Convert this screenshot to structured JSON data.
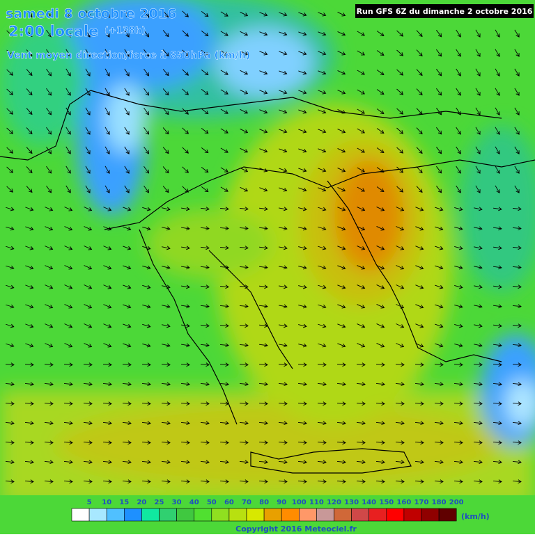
{
  "header": {
    "date": "samedi 8 octobre 2016",
    "time": "2:00 locale",
    "offset": "(+138h)",
    "variable": "Vent moyen direction/force à 850hPa (km/h)",
    "run": "Run GFS 6Z du dimanche 2 octobre 2016"
  },
  "legend": {
    "items": [
      {
        "label": 5,
        "color": "#ffffff"
      },
      {
        "label": 10,
        "color": "#a8e8ff"
      },
      {
        "label": 15,
        "color": "#50c0ff"
      },
      {
        "label": 20,
        "color": "#1e90ff"
      },
      {
        "label": 25,
        "color": "#10e8a0"
      },
      {
        "label": 30,
        "color": "#30d070"
      },
      {
        "label": 40,
        "color": "#40c840"
      },
      {
        "label": 50,
        "color": "#50e030"
      },
      {
        "label": 60,
        "color": "#90e020"
      },
      {
        "label": 70,
        "color": "#b8e010"
      },
      {
        "label": 80,
        "color": "#d8e800"
      },
      {
        "label": 90,
        "color": "#e8a000"
      },
      {
        "label": 100,
        "color": "#ff8c00"
      },
      {
        "label": 110,
        "color": "#ff9868"
      },
      {
        "label": 120,
        "color": "#c89898"
      },
      {
        "label": 130,
        "color": "#d06838"
      },
      {
        "label": 140,
        "color": "#d04848"
      },
      {
        "label": 150,
        "color": "#e82020"
      },
      {
        "label": 160,
        "color": "#ff0000"
      },
      {
        "label": 170,
        "color": "#c00000"
      },
      {
        "label": 180,
        "color": "#900000"
      },
      {
        "label": 200,
        "color": "#600000"
      }
    ],
    "unit": "(km/h)"
  },
  "footer": {
    "copyright": "Copyright 2016 Meteociel.fr"
  }
}
